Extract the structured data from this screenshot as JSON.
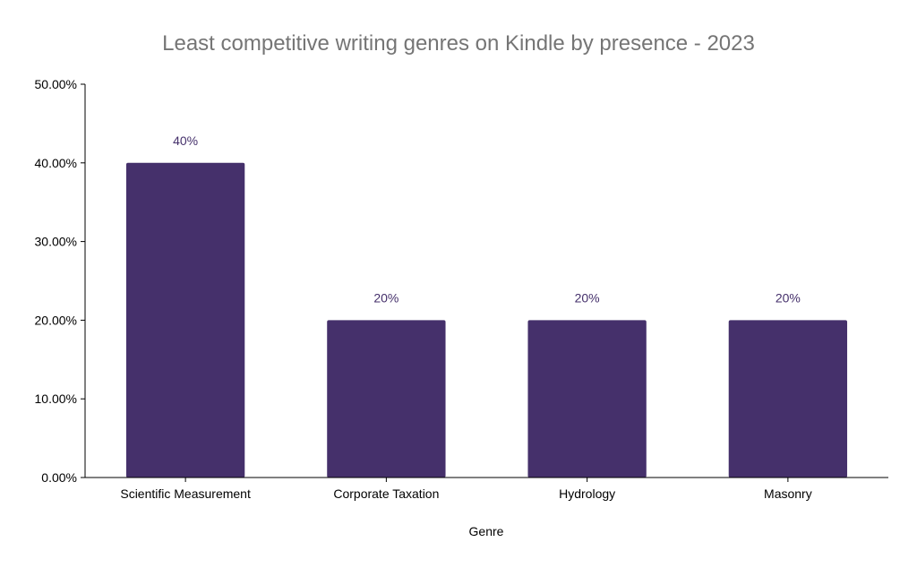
{
  "chart_data": {
    "type": "bar",
    "title": "Least competitive writing genres on Kindle by presence - 2023",
    "xlabel": "Genre",
    "ylabel": "",
    "categories": [
      "Scientific Measurement",
      "Corporate Taxation",
      "Hydrology",
      "Masonry"
    ],
    "values": [
      40,
      20,
      20,
      20
    ],
    "data_labels": [
      "40%",
      "20%",
      "20%",
      "20%"
    ],
    "ylim": [
      0,
      50
    ],
    "y_ticks": [
      0,
      10,
      20,
      30,
      40,
      50
    ],
    "y_tick_labels": [
      "0.00%",
      "10.00%",
      "20.00%",
      "30.00%",
      "40.00%",
      "50.00%"
    ],
    "grid": false,
    "legend": "none",
    "bar_color": "#45306b",
    "label_color": "#45306b"
  }
}
